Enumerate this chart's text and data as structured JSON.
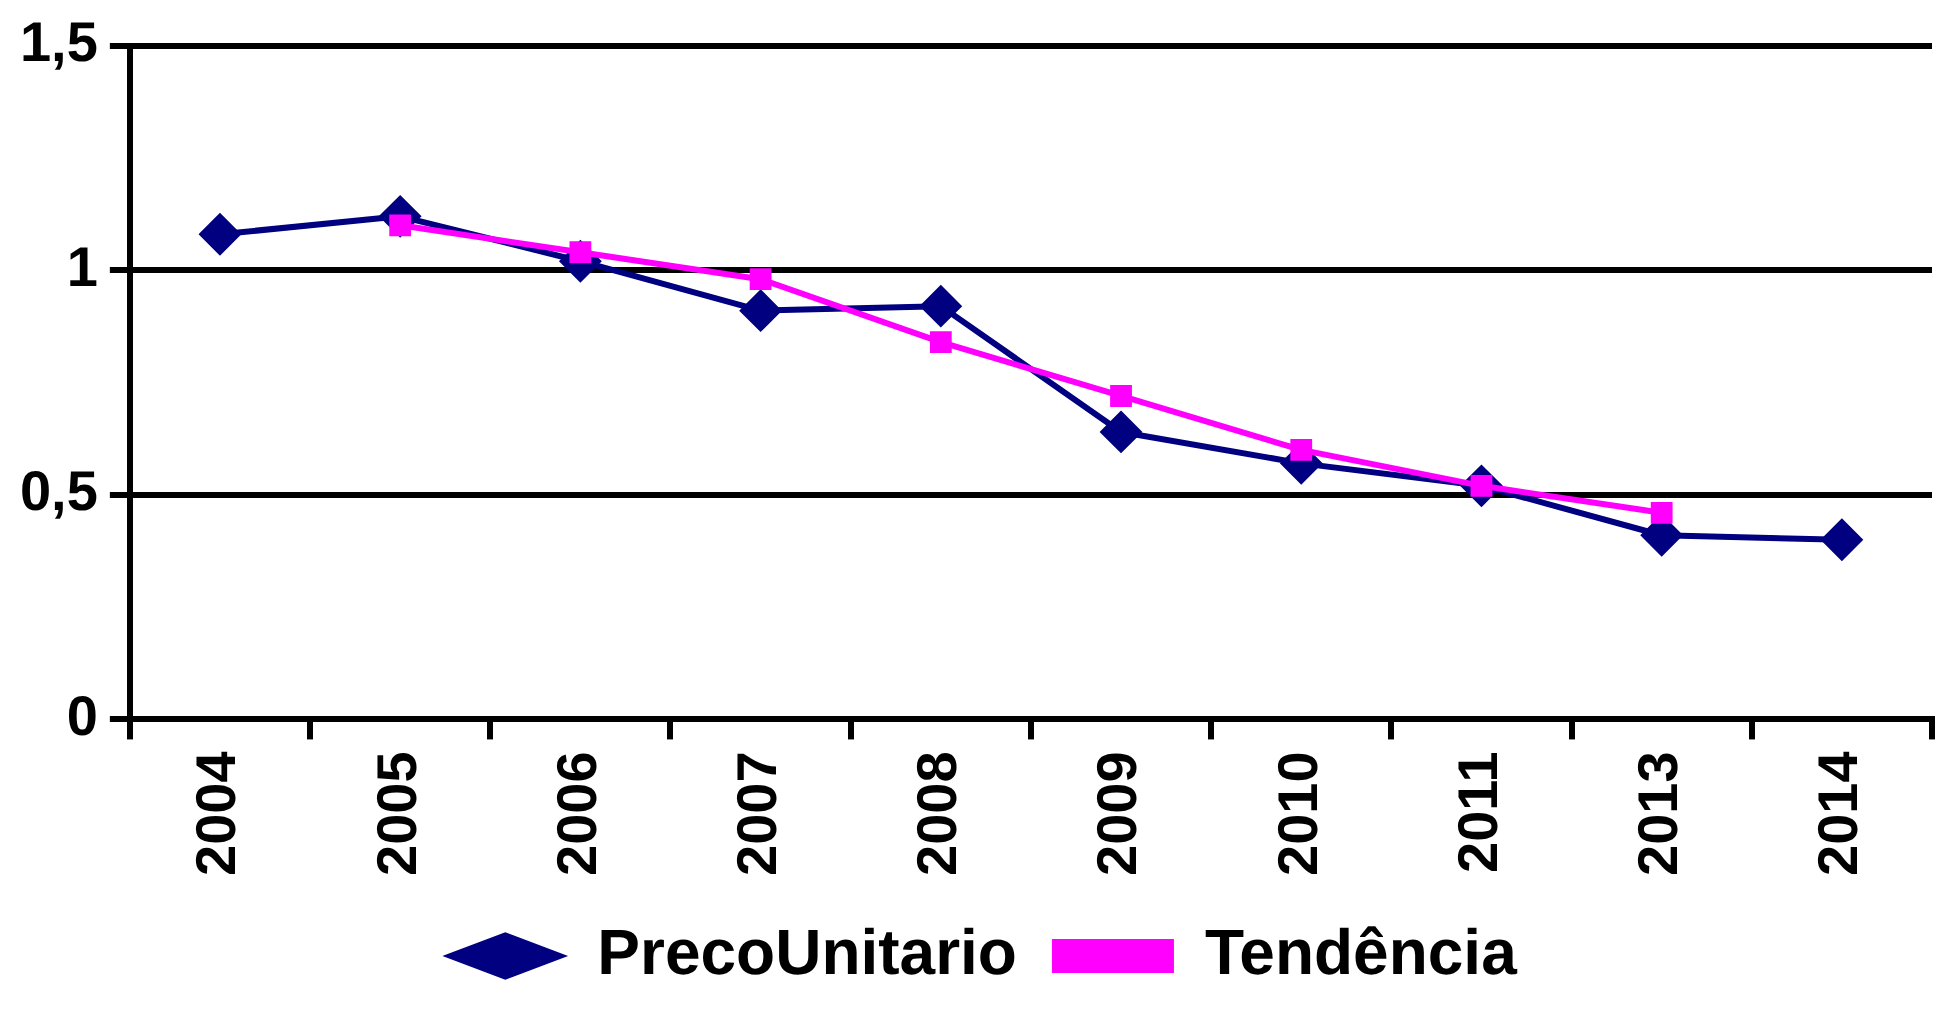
{
  "chart_data": {
    "type": "line",
    "categories": [
      "2004",
      "2005",
      "2006",
      "2007",
      "2008",
      "2009",
      "2010",
      "2011",
      "2013",
      "2014"
    ],
    "series": [
      {
        "name": "PrecoUnitario",
        "color": "#000080",
        "marker": "diamond",
        "values": [
          1.08,
          1.12,
          1.02,
          0.91,
          0.92,
          0.64,
          0.57,
          0.52,
          0.41,
          0.4
        ]
      },
      {
        "name": "Tendência",
        "color": "#ff00ff",
        "marker": "square",
        "values": [
          null,
          1.1,
          1.04,
          0.98,
          0.84,
          0.72,
          0.6,
          0.52,
          0.46,
          null
        ]
      }
    ],
    "ylim": [
      0,
      1.5
    ],
    "yticks": [
      {
        "value": 0,
        "label": "0"
      },
      {
        "value": 0.5,
        "label": "0,5"
      },
      {
        "value": 1,
        "label": "1"
      },
      {
        "value": 1.5,
        "label": "1,5"
      }
    ],
    "grid": "y",
    "legend": "bottom",
    "line_style": "solid"
  }
}
